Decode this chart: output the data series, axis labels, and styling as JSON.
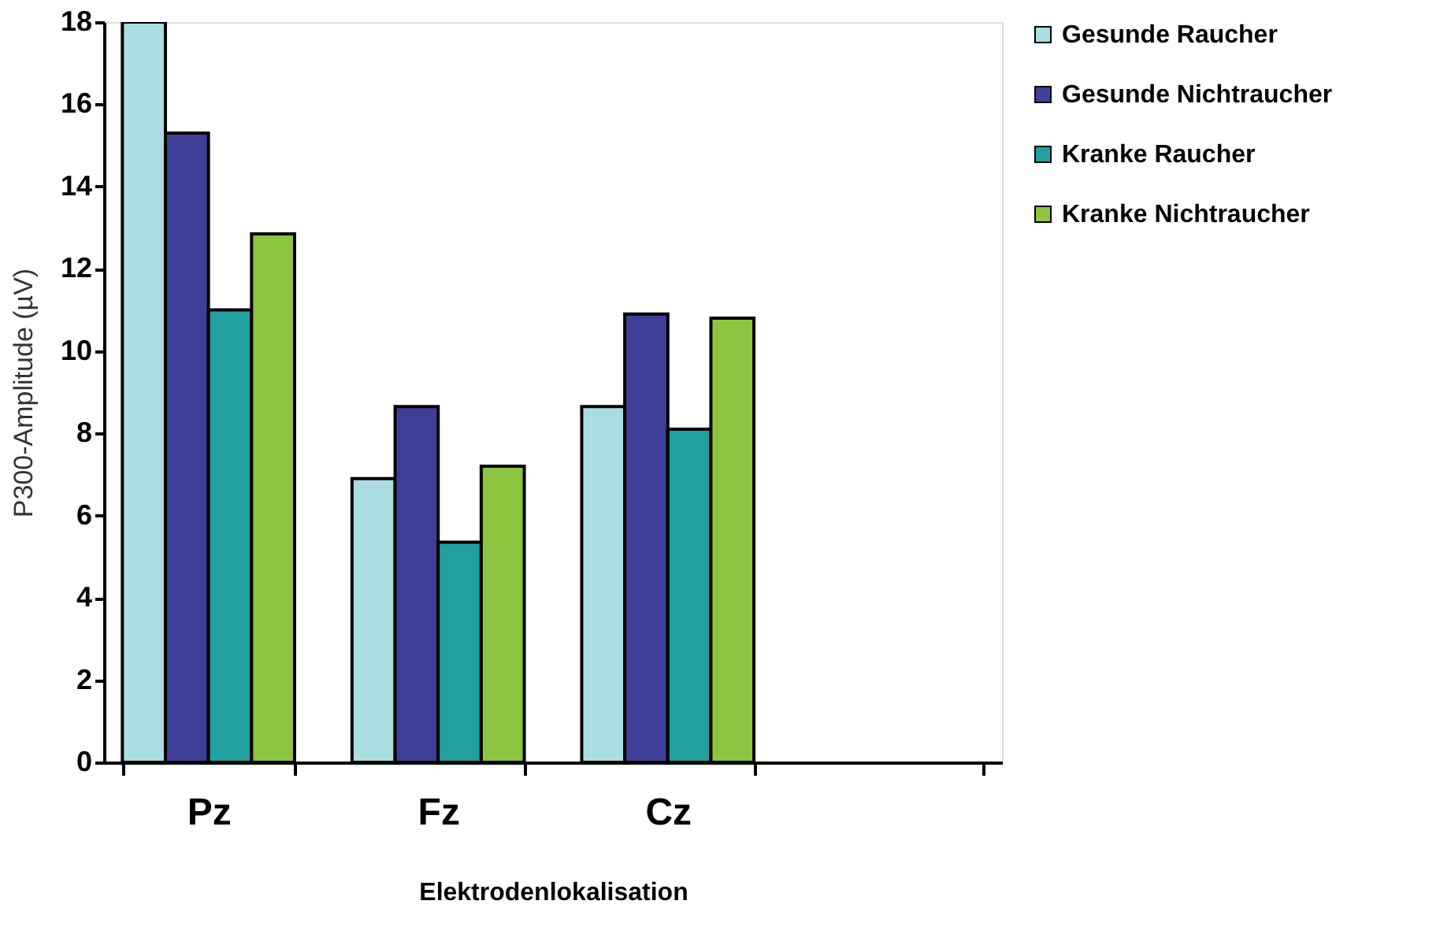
{
  "chart_data": {
    "type": "bar",
    "xlabel": "Elektrodenlokalisation",
    "ylabel": "P300-Amplitude (µV)",
    "categories": [
      "Pz",
      "Fz",
      "Cz",
      null
    ],
    "series": [
      {
        "name": "Gesunde Raucher",
        "color": "#aadde1",
        "values": [
          18,
          6.9,
          8.65,
          null
        ]
      },
      {
        "name": "Gesunde Nichtraucher",
        "color": "#3f3f98",
        "values": [
          15.3,
          8.65,
          10.9,
          null
        ]
      },
      {
        "name": "Kranke Raucher",
        "color": "#22a0a0",
        "values": [
          11.0,
          5.35,
          8.1,
          null
        ]
      },
      {
        "name": "Kranke Nichtraucher",
        "color": "#8dc540",
        "values": [
          12.85,
          7.2,
          10.8,
          null
        ]
      }
    ],
    "ylim": [
      0,
      18
    ],
    "yticks": [
      0,
      2,
      4,
      6,
      8,
      10,
      12,
      14,
      16,
      18
    ],
    "grid": false,
    "legend": "right"
  }
}
